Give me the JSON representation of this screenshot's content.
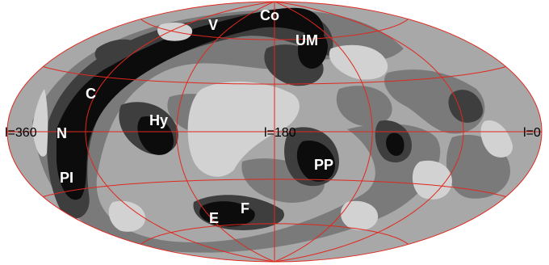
{
  "colors": {
    "background_ellipse": "#a8a8a8",
    "level_light": "#d2d2d2",
    "level_mid": "#7a7a7a",
    "level_dark": "#3e3e3e",
    "level_black": "#0c0c0c",
    "grid": "#e0281e"
  },
  "labels": {
    "v": "V",
    "co": "Co",
    "um": "UM",
    "c": "C",
    "hy": "Hy",
    "n": "N",
    "pi": "PI",
    "pp": "PP",
    "e": "E",
    "f": "F"
  },
  "axis_labels": {
    "left": "l=360",
    "center": "l=180",
    "right": "l=0"
  }
}
